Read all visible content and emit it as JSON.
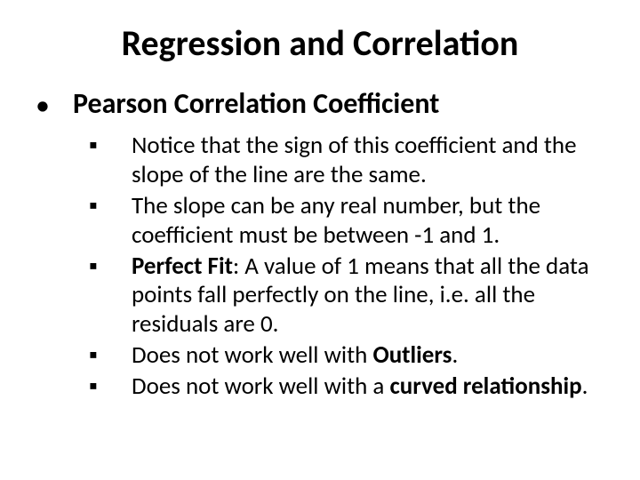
{
  "title": {
    "text": "Regression and Correlation",
    "fontsize": 40
  },
  "level1": {
    "bullet_char": "•",
    "fontsize": 32,
    "items": [
      {
        "text": "Pearson Correlation Coefficient"
      }
    ]
  },
  "level2": {
    "bullet_char": "▪",
    "fontsize": 27,
    "items": [
      {
        "runs": [
          {
            "t": "Notice that the sign of this coefficient and the slope of the line are the same."
          }
        ]
      },
      {
        "runs": [
          {
            "t": "The slope can be any real number, but the coefficient must be between -1 and 1."
          }
        ]
      },
      {
        "runs": [
          {
            "t": "Perfect Fit",
            "bold": true
          },
          {
            "t": ": A value of 1 means that all the data points fall perfectly on the line, i.e. all the residuals are 0."
          }
        ]
      },
      {
        "runs": [
          {
            "t": "Does not work well with "
          },
          {
            "t": "Outliers",
            "bold": true
          },
          {
            "t": "."
          }
        ]
      },
      {
        "runs": [
          {
            "t": "Does not work well with a "
          },
          {
            "t": "curved relationship",
            "bold": true
          },
          {
            "t": "."
          }
        ]
      }
    ]
  },
  "colors": {
    "text": "#000000",
    "background": "#ffffff"
  }
}
